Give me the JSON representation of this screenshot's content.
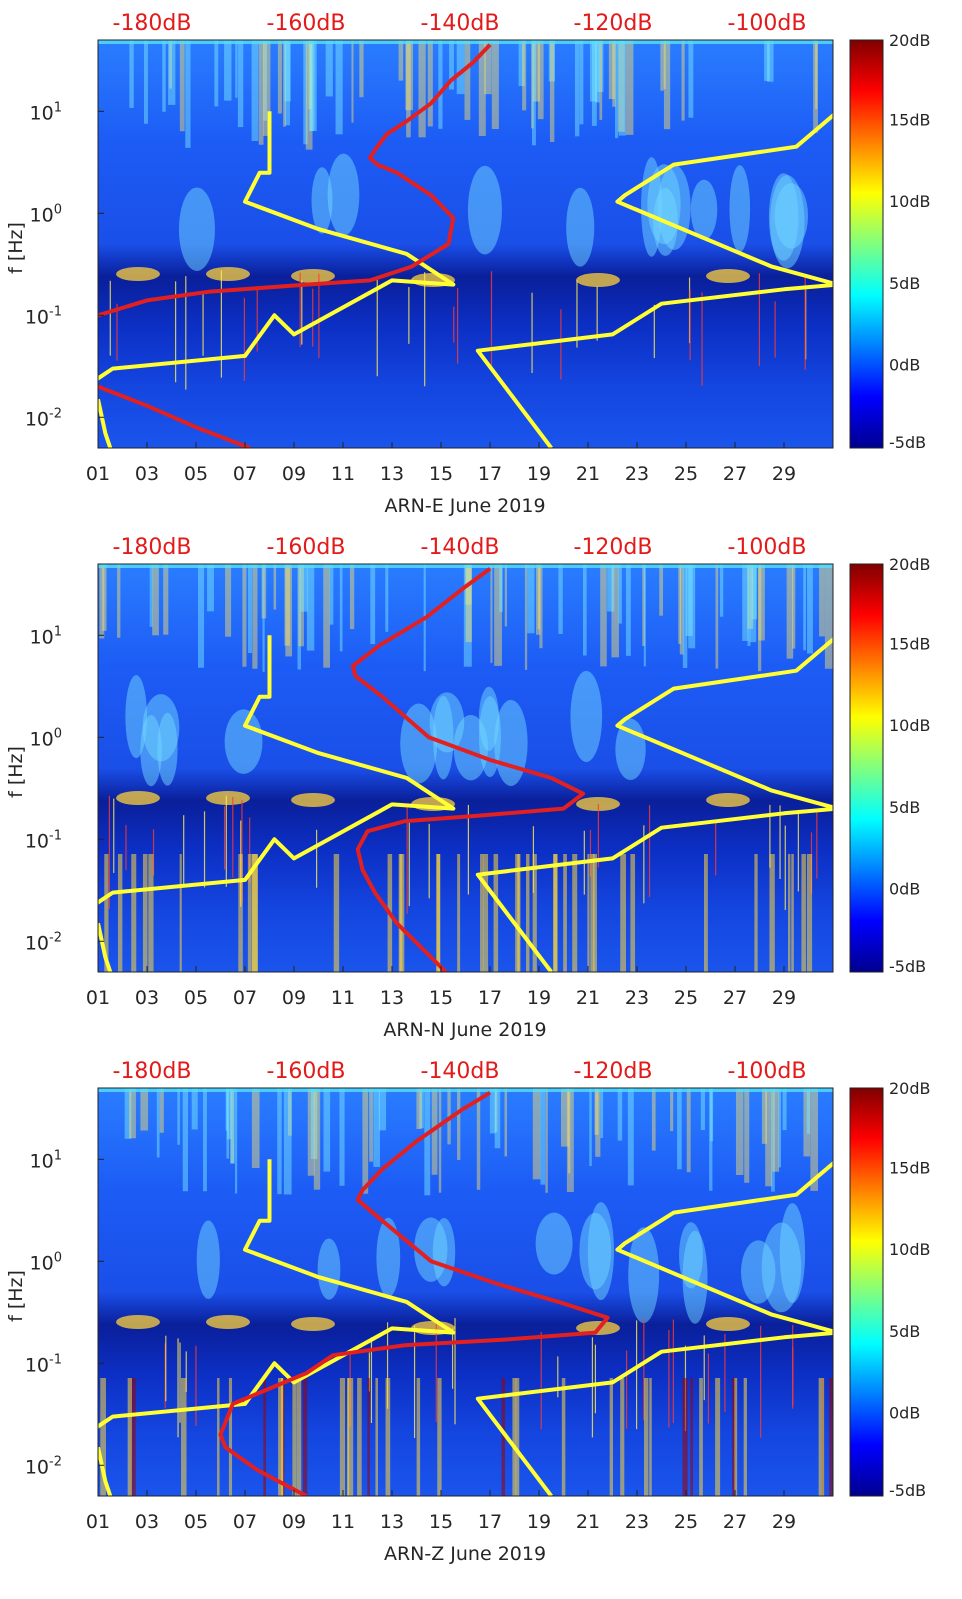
{
  "chart_data": [
    {
      "type": "heatmap",
      "xlabel": "ARN-E June 2019",
      "ylabel": "f [Hz]",
      "x_ticks": [
        "01",
        "03",
        "05",
        "07",
        "09",
        "11",
        "13",
        "15",
        "17",
        "19",
        "21",
        "23",
        "25",
        "27",
        "29"
      ],
      "y_ticks": [
        "10^1",
        "10^0",
        "10^-1",
        "10^-2"
      ],
      "y_scale": "log",
      "ylim": [
        0.005,
        50
      ],
      "xlim_day": [
        1,
        31
      ],
      "top_labels": [
        "-180dB",
        "-160dB",
        "-140dB",
        "-120dB",
        "-100dB"
      ],
      "colorbar": {
        "labels": [
          "20dB",
          "15dB",
          "10dB",
          "5dB",
          "0dB",
          "-5dB"
        ],
        "range": [
          -5,
          20
        ],
        "colormap": "jet"
      },
      "series": [
        {
          "color": "#ffff33",
          "x_day": [
            8,
            8,
            7.6,
            7,
            10,
            13.6,
            15.5,
            13,
            9,
            8.2,
            7,
            1.6,
            0.5,
            0.2
          ],
          "y_hz": [
            10,
            2.5,
            2.5,
            1.3,
            0.7,
            0.4,
            0.2,
            0.22,
            0.065,
            0.1,
            0.04,
            0.03,
            0.02,
            0.015
          ]
        },
        {
          "color": "#ffff33",
          "x_day": [
            1,
            1.3,
            1.5
          ],
          "y_hz": [
            0.015,
            0.007,
            0.005
          ]
        },
        {
          "color": "#ffff33",
          "x_day": [
            31.2,
            29.5,
            24.5,
            22.5,
            22.2,
            28.5,
            31.2,
            29,
            24,
            22,
            16.5,
            19.5
          ],
          "y_hz": [
            10,
            4.5,
            3,
            1.5,
            1.3,
            0.3,
            0.2,
            0.18,
            0.13,
            0.065,
            0.045,
            0.005
          ]
        },
        {
          "color": "#e32020",
          "x_day": [
            17,
            16.3,
            15.4,
            14.6,
            13.6,
            12.8,
            12.4,
            12.1,
            12.4,
            13.2,
            14.6,
            15.5,
            15.3,
            13.8,
            12.1,
            9.5,
            5.5,
            3,
            1
          ],
          "y_hz": [
            45,
            30,
            20,
            12,
            8,
            6,
            4.5,
            3.5,
            3,
            2.5,
            1.5,
            0.9,
            0.5,
            0.3,
            0.22,
            0.2,
            0.17,
            0.14,
            0.1
          ]
        },
        {
          "color": "#e32020",
          "x_day": [
            1,
            3,
            5,
            7.2
          ],
          "y_hz": [
            0.02,
            0.013,
            0.008,
            0.005
          ]
        }
      ]
    },
    {
      "type": "heatmap",
      "xlabel": "ARN-N June 2019",
      "ylabel": "f [Hz]",
      "x_ticks": [
        "01",
        "03",
        "05",
        "07",
        "09",
        "11",
        "13",
        "15",
        "17",
        "19",
        "21",
        "23",
        "25",
        "27",
        "29"
      ],
      "y_ticks": [
        "10^1",
        "10^0",
        "10^-1",
        "10^-2"
      ],
      "y_scale": "log",
      "ylim": [
        0.005,
        50
      ],
      "xlim_day": [
        1,
        31
      ],
      "top_labels": [
        "-180dB",
        "-160dB",
        "-140dB",
        "-120dB",
        "-100dB"
      ],
      "colorbar": {
        "labels": [
          "20dB",
          "15dB",
          "10dB",
          "5dB",
          "0dB",
          "-5dB"
        ],
        "range": [
          -5,
          20
        ],
        "colormap": "jet"
      },
      "series": [
        {
          "color": "#ffff33",
          "x_day": [
            8,
            8,
            7.6,
            7,
            10,
            13.6,
            15.5,
            13,
            9,
            8.2,
            7,
            1.6,
            0.5,
            0.2
          ],
          "y_hz": [
            10,
            2.5,
            2.5,
            1.3,
            0.7,
            0.4,
            0.2,
            0.22,
            0.065,
            0.1,
            0.04,
            0.03,
            0.02,
            0.015
          ]
        },
        {
          "color": "#ffff33",
          "x_day": [
            1,
            1.3,
            1.5
          ],
          "y_hz": [
            0.015,
            0.007,
            0.005
          ]
        },
        {
          "color": "#ffff33",
          "x_day": [
            31.2,
            29.5,
            24.5,
            22.5,
            22.2,
            28.5,
            31.2,
            29,
            24,
            22,
            16.5,
            19.5
          ],
          "y_hz": [
            10,
            4.5,
            3,
            1.5,
            1.3,
            0.3,
            0.2,
            0.18,
            0.13,
            0.065,
            0.045,
            0.005
          ]
        },
        {
          "color": "#e32020",
          "x_day": [
            17,
            16,
            14.4,
            12.5,
            11.4,
            11.5,
            12.6,
            14.5,
            17,
            19.5,
            20.8,
            20,
            16.5,
            13.5,
            12,
            11.6,
            11.8,
            12.3,
            13.2,
            15.2
          ],
          "y_hz": [
            45,
            30,
            15,
            8,
            5,
            4,
            2.5,
            1,
            0.6,
            0.4,
            0.28,
            0.2,
            0.17,
            0.15,
            0.12,
            0.08,
            0.05,
            0.03,
            0.015,
            0.005
          ]
        }
      ]
    },
    {
      "type": "heatmap",
      "xlabel": "ARN-Z June 2019",
      "ylabel": "f [Hz]",
      "x_ticks": [
        "01",
        "03",
        "05",
        "07",
        "09",
        "11",
        "13",
        "15",
        "17",
        "19",
        "21",
        "23",
        "25",
        "27",
        "29"
      ],
      "y_ticks": [
        "10^1",
        "10^0",
        "10^-1",
        "10^-2"
      ],
      "y_scale": "log",
      "ylim": [
        0.005,
        50
      ],
      "xlim_day": [
        1,
        31
      ],
      "top_labels": [
        "-180dB",
        "-160dB",
        "-140dB",
        "-120dB",
        "-100dB"
      ],
      "colorbar": {
        "labels": [
          "20dB",
          "15dB",
          "10dB",
          "5dB",
          "0dB",
          "-5dB"
        ],
        "range": [
          -5,
          20
        ],
        "colormap": "jet"
      },
      "series": [
        {
          "color": "#ffff33",
          "x_day": [
            8,
            8,
            7.6,
            7,
            10,
            13.6,
            15.5,
            13,
            9,
            8.2,
            7,
            1.6,
            0.5,
            0.2
          ],
          "y_hz": [
            10,
            2.5,
            2.5,
            1.3,
            0.7,
            0.4,
            0.2,
            0.22,
            0.065,
            0.1,
            0.04,
            0.03,
            0.02,
            0.015
          ]
        },
        {
          "color": "#ffff33",
          "x_day": [
            1,
            1.3,
            1.5
          ],
          "y_hz": [
            0.015,
            0.007,
            0.005
          ]
        },
        {
          "color": "#ffff33",
          "x_day": [
            31.2,
            29.5,
            24.5,
            22.5,
            22.2,
            28.5,
            31.2,
            29,
            24,
            22,
            16.5,
            19.5
          ],
          "y_hz": [
            10,
            4.5,
            3,
            1.5,
            1.3,
            0.3,
            0.2,
            0.18,
            0.13,
            0.065,
            0.045,
            0.005
          ]
        },
        {
          "color": "#e32020",
          "x_day": [
            17,
            15.8,
            14,
            12.6,
            11.8,
            11.6,
            12.6,
            14.6,
            17.3,
            19.8,
            21.8,
            21.3,
            17.5,
            13.5,
            10.6,
            9.5,
            6.5,
            6,
            6.2,
            7.5,
            9.5
          ],
          "y_hz": [
            45,
            30,
            15,
            8,
            5,
            4,
            2.5,
            1,
            0.6,
            0.4,
            0.28,
            0.2,
            0.17,
            0.15,
            0.12,
            0.08,
            0.04,
            0.02,
            0.015,
            0.009,
            0.005
          ]
        }
      ]
    }
  ]
}
